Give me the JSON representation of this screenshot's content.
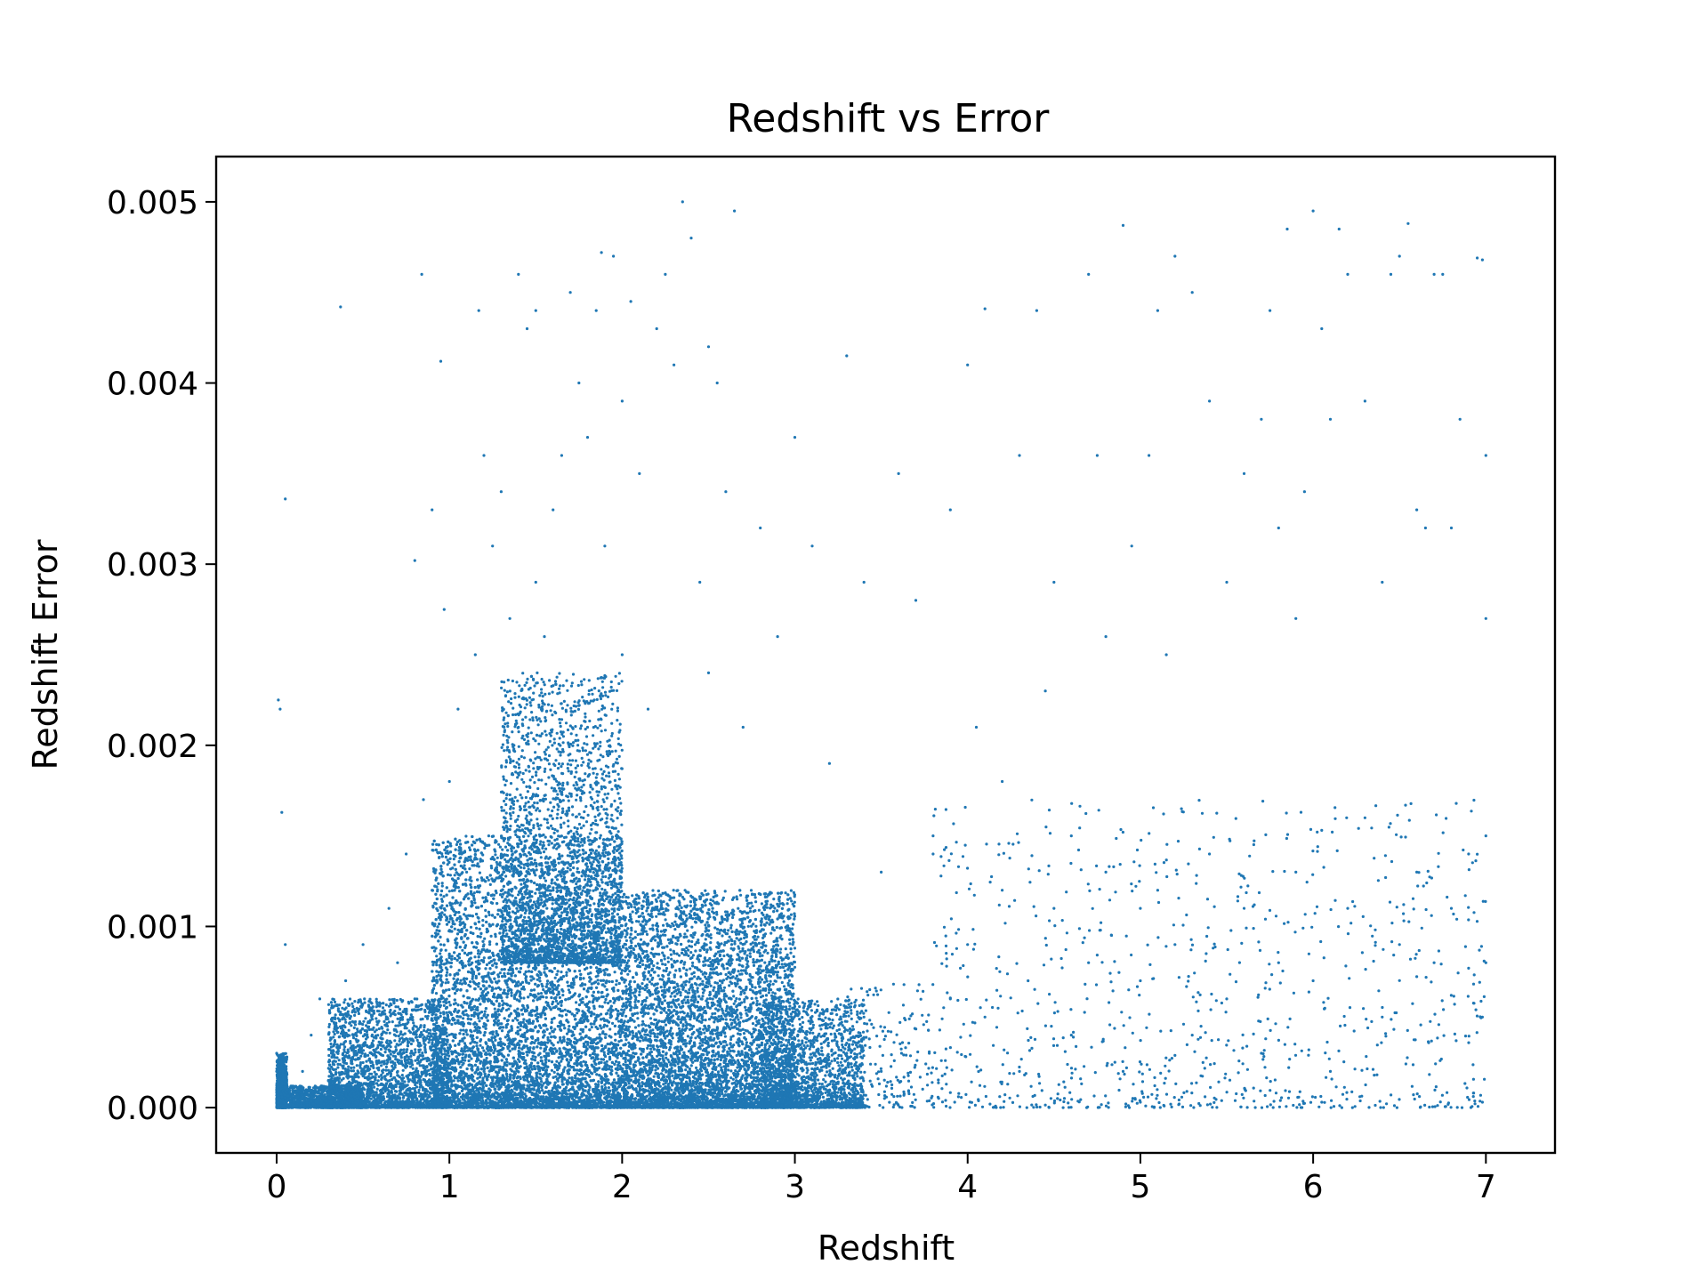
{
  "chart_data": {
    "type": "scatter",
    "title": "Redshift vs Error",
    "xlabel": "Redshift",
    "ylabel": "Redshift Error",
    "xlim": [
      -0.35,
      7.4
    ],
    "ylim": [
      -0.00025,
      0.00525
    ],
    "x_ticks": [
      0,
      1,
      2,
      3,
      4,
      5,
      6,
      7
    ],
    "x_tick_labels": [
      "0",
      "1",
      "2",
      "3",
      "4",
      "5",
      "6",
      "7"
    ],
    "y_ticks": [
      0.0,
      0.001,
      0.002,
      0.003,
      0.004,
      0.005
    ],
    "y_tick_labels": [
      "0.000",
      "0.001",
      "0.002",
      "0.003",
      "0.004",
      "0.005"
    ],
    "grid": false,
    "legend": "none",
    "color": "#1f77b4",
    "series": [
      {
        "points": [
          [
            0.0,
            5e-05
          ],
          [
            0.0,
            0.0001
          ],
          [
            0.0,
            0.0002
          ],
          [
            0.0,
            0.0003
          ],
          [
            0.01,
            0.00225
          ],
          [
            0.02,
            0.0022
          ],
          [
            0.03,
            0.00163
          ],
          [
            0.05,
            0.00336
          ],
          [
            0.05,
            0.0009
          ],
          [
            0.1,
            3e-05
          ],
          [
            0.15,
            0.0002
          ],
          [
            0.2,
            0.0004
          ],
          [
            0.25,
            0.0006
          ],
          [
            0.3,
            0.00015
          ],
          [
            0.37,
            0.00442
          ],
          [
            0.4,
            0.0007
          ],
          [
            0.45,
            0.0003
          ],
          [
            0.5,
            0.0009
          ],
          [
            0.55,
            0.0005
          ],
          [
            0.6,
            0.00035
          ],
          [
            0.65,
            0.0011
          ],
          [
            0.7,
            0.0008
          ],
          [
            0.75,
            0.0014
          ],
          [
            0.8,
            0.0006
          ],
          [
            0.8,
            0.00302
          ],
          [
            0.84,
            0.0046
          ],
          [
            0.85,
            0.0017
          ],
          [
            0.9,
            0.0012
          ],
          [
            0.9,
            0.0033
          ],
          [
            0.95,
            0.00412
          ],
          [
            0.95,
            0.0009
          ],
          [
            0.97,
            0.00275
          ],
          [
            1.0,
            0.0018
          ],
          [
            1.0,
            0.0008
          ],
          [
            1.05,
            0.0022
          ],
          [
            1.1,
            0.0013
          ],
          [
            1.15,
            0.0025
          ],
          [
            1.17,
            0.0044
          ],
          [
            1.2,
            0.0036
          ],
          [
            1.2,
            0.0009
          ],
          [
            1.25,
            0.0031
          ],
          [
            1.3,
            0.0034
          ],
          [
            1.35,
            0.0027
          ],
          [
            1.35,
            0.0017
          ],
          [
            1.4,
            0.0021
          ],
          [
            1.4,
            0.0046
          ],
          [
            1.45,
            0.0043
          ],
          [
            1.5,
            0.0044
          ],
          [
            1.5,
            0.0029
          ],
          [
            1.55,
            0.0026
          ],
          [
            1.6,
            0.0033
          ],
          [
            1.65,
            0.0036
          ],
          [
            1.7,
            0.0045
          ],
          [
            1.75,
            0.004
          ],
          [
            1.8,
            0.0037
          ],
          [
            1.8,
            0.0021
          ],
          [
            1.85,
            0.0044
          ],
          [
            1.88,
            0.00472
          ],
          [
            1.9,
            0.0031
          ],
          [
            1.95,
            0.0047
          ],
          [
            2.0,
            0.0039
          ],
          [
            2.0,
            0.0025
          ],
          [
            2.05,
            0.00445
          ],
          [
            2.1,
            0.0035
          ],
          [
            2.15,
            0.0022
          ],
          [
            2.2,
            0.0043
          ],
          [
            2.25,
            0.0046
          ],
          [
            2.3,
            0.0041
          ],
          [
            2.35,
            0.005
          ],
          [
            2.4,
            0.0048
          ],
          [
            2.45,
            0.0029
          ],
          [
            2.5,
            0.0042
          ],
          [
            2.5,
            0.0024
          ],
          [
            2.55,
            0.004
          ],
          [
            2.6,
            0.0034
          ],
          [
            2.65,
            0.00495
          ],
          [
            2.7,
            0.0021
          ],
          [
            2.8,
            0.0032
          ],
          [
            2.9,
            0.0026
          ],
          [
            3.0,
            0.0037
          ],
          [
            3.1,
            0.0031
          ],
          [
            3.2,
            0.0019
          ],
          [
            3.3,
            0.00415
          ],
          [
            3.4,
            0.0029
          ],
          [
            3.5,
            0.0013
          ],
          [
            3.6,
            0.0035
          ],
          [
            3.7,
            0.0028
          ],
          [
            3.8,
            0.0015
          ],
          [
            3.9,
            0.0033
          ],
          [
            4.0,
            0.0041
          ],
          [
            4.05,
            0.0021
          ],
          [
            4.1,
            0.00441
          ],
          [
            4.2,
            0.0018
          ],
          [
            4.3,
            0.0036
          ],
          [
            4.4,
            0.0044
          ],
          [
            4.45,
            0.0023
          ],
          [
            4.5,
            0.0029
          ],
          [
            4.6,
            0.0015
          ],
          [
            4.7,
            0.0046
          ],
          [
            4.75,
            0.0036
          ],
          [
            4.8,
            0.0026
          ],
          [
            4.9,
            0.00487
          ],
          [
            4.95,
            0.0031
          ],
          [
            5.0,
            0.0011
          ],
          [
            5.05,
            0.0036
          ],
          [
            5.1,
            0.0044
          ],
          [
            5.15,
            0.0025
          ],
          [
            5.2,
            0.0047
          ],
          [
            5.3,
            0.0045
          ],
          [
            5.4,
            0.0039
          ],
          [
            5.5,
            0.0029
          ],
          [
            5.6,
            0.0035
          ],
          [
            5.7,
            0.0038
          ],
          [
            5.75,
            0.0044
          ],
          [
            5.8,
            0.0032
          ],
          [
            5.85,
            0.00485
          ],
          [
            5.9,
            0.0027
          ],
          [
            5.95,
            0.0034
          ],
          [
            6.0,
            0.00495
          ],
          [
            6.05,
            0.0043
          ],
          [
            6.1,
            0.0038
          ],
          [
            6.15,
            0.00485
          ],
          [
            6.2,
            0.0046
          ],
          [
            6.3,
            0.0039
          ],
          [
            6.4,
            0.0029
          ],
          [
            6.45,
            0.0046
          ],
          [
            6.5,
            0.0047
          ],
          [
            6.55,
            0.00488
          ],
          [
            6.6,
            0.0033
          ],
          [
            6.65,
            0.0032
          ],
          [
            6.7,
            0.0046
          ],
          [
            6.75,
            0.0046
          ],
          [
            6.8,
            0.0032
          ],
          [
            6.85,
            0.0038
          ],
          [
            6.95,
            0.00469
          ],
          [
            6.98,
            0.00468
          ],
          [
            7.0,
            0.0036
          ],
          [
            7.0,
            0.0027
          ],
          [
            7.0,
            0.0015
          ],
          [
            7.0,
            0.0008
          ],
          [
            6.98,
            0.0005
          ],
          [
            6.98,
            3e-05
          ],
          [
            3.8,
            0.0014
          ],
          [
            3.9,
            0.0006
          ],
          [
            4.0,
            0.0009
          ],
          [
            4.1,
            0.0005
          ],
          [
            4.2,
            0.0012
          ],
          [
            4.3,
            0.0002
          ],
          [
            4.35,
            0.0007
          ],
          [
            4.5,
            0.0011
          ],
          [
            4.6,
            0.0004
          ],
          [
            4.7,
            0.0008
          ],
          [
            4.8,
            0.0013
          ],
          [
            4.9,
            0.0002
          ],
          [
            5.0,
            0.0007
          ],
          [
            5.1,
            0.0012
          ],
          [
            5.2,
            0.0009
          ],
          [
            5.3,
            0.0004
          ],
          [
            5.4,
            0.0014
          ],
          [
            5.5,
            0.0006
          ],
          [
            5.6,
            0.0011
          ],
          [
            5.7,
            0.0003
          ],
          [
            5.8,
            0.0008
          ],
          [
            5.9,
            0.0013
          ],
          [
            6.0,
            0.0007
          ],
          [
            6.1,
            0.0002
          ],
          [
            6.2,
            0.0011
          ],
          [
            6.3,
            0.0016
          ],
          [
            6.4,
            0.0005
          ],
          [
            6.5,
            0.0009
          ],
          [
            6.6,
            0.0013
          ],
          [
            6.7,
            0.0008
          ],
          [
            6.8,
            0.0011
          ],
          [
            6.9,
            0.0014
          ],
          [
            5.0,
            3e-05
          ],
          [
            6.05,
            3e-05
          ],
          [
            3.1,
            3e-05
          ],
          [
            3.3,
            0.0003
          ],
          [
            3.4,
            0.0005
          ],
          [
            3.5,
            0.0002
          ]
        ]
      }
    ],
    "density_regions": [
      {
        "x": [
          0.0,
          0.06
        ],
        "y_min": 0.0,
        "y_max": 0.0003,
        "count": 600
      },
      {
        "x": [
          0.0,
          0.5
        ],
        "y_min": 0.0,
        "y_max": 0.00012,
        "count": 1200
      },
      {
        "x": [
          0.3,
          1.0
        ],
        "y_min": 0.0,
        "y_max": 0.0006,
        "count": 2500
      },
      {
        "x": [
          0.9,
          2.0
        ],
        "y_min": 0.0,
        "y_max": 0.0015,
        "count": 9000
      },
      {
        "x": [
          1.3,
          2.0
        ],
        "y_min": 0.0008,
        "y_max": 0.0024,
        "count": 2500
      },
      {
        "x": [
          2.0,
          3.0
        ],
        "y_min": 0.0,
        "y_max": 0.0012,
        "count": 7000
      },
      {
        "x": [
          2.8,
          3.4
        ],
        "y_min": 0.0,
        "y_max": 0.0006,
        "count": 1800
      },
      {
        "x": [
          3.3,
          3.8
        ],
        "y_min": 0.0,
        "y_max": 0.0007,
        "count": 180
      },
      {
        "x": [
          3.8,
          7.0
        ],
        "y_min": 0.0,
        "y_max": 0.0017,
        "count": 900
      }
    ]
  }
}
